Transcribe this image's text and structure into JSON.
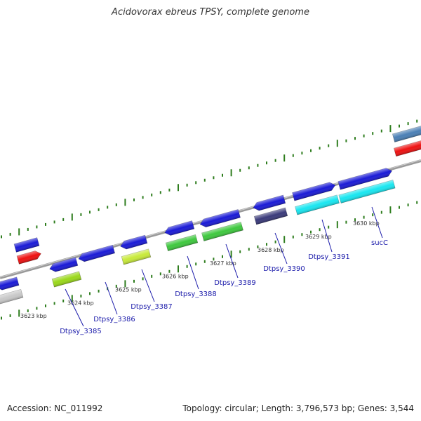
{
  "title": "Acidovorax ebreus TPSY, complete genome",
  "footer": {
    "accession": "Accession: NC_011992",
    "summary": "Topology: circular; Length: 3,796,573 bp; Genes: 3,544"
  },
  "colors": {
    "forward_gene": "#1a1ad6",
    "backbone": "#8a8a8a",
    "tick": "#2e7d1e",
    "gene_label": "#1a1aaa",
    "red": "#ee1111",
    "grey": "#c8c8c8",
    "steel": "#4a7fb5",
    "lime": "#9ad81a",
    "green": "#3ec83e",
    "purple": "#3a3a7a",
    "cyan": "#18e6f0"
  },
  "kbp_ticks": [
    "3623 kbp",
    "3624 kbp",
    "3625 kbp",
    "3626 kbp",
    "3627 kbp",
    "3628 kbp",
    "3629 kbp",
    "3630 kbp"
  ],
  "genes": [
    {
      "name": "Dtpsy_3385",
      "id": "gene-dtpsy-3385",
      "strand": "-",
      "color_top": "#1a1ad6",
      "color_bottom": "#9ad81a"
    },
    {
      "name": "Dtpsy_3386",
      "id": "gene-dtpsy-3386",
      "strand": "-",
      "color_top": "#1a1ad6",
      "color_bottom": null
    },
    {
      "name": "Dtpsy_3387",
      "id": "gene-dtpsy-3387",
      "strand": "-",
      "color_top": "#1a1ad6",
      "color_bottom": "#c8ea3a"
    },
    {
      "name": "Dtpsy_3388",
      "id": "gene-dtpsy-3388",
      "strand": "-",
      "color_top": "#1a1ad6",
      "color_bottom": "#3ec83e"
    },
    {
      "name": "Dtpsy_3389",
      "id": "gene-dtpsy-3389",
      "strand": "-",
      "color_top": "#1a1ad6",
      "color_bottom": "#3ec83e"
    },
    {
      "name": "Dtpsy_3390",
      "id": "gene-dtpsy-3390",
      "strand": "-",
      "color_top": "#1a1ad6",
      "color_bottom": "#3a3a7a"
    },
    {
      "name": "Dtpsy_3391",
      "id": "gene-dtpsy-3391",
      "strand": "+",
      "color_top": "#1a1ad6",
      "color_bottom": "#18e6f0"
    },
    {
      "name": "sucC",
      "id": "gene-succ",
      "strand": "+",
      "color_top": "#1a1ad6",
      "color_bottom": "#18e6f0"
    }
  ],
  "unlabeled_features": [
    {
      "name": "upstream-feature-blue",
      "color": "#1a1ad6"
    },
    {
      "name": "upstream-feature-grey",
      "color": "#c8c8c8"
    },
    {
      "name": "upstream-feature-red",
      "color": "#ee1111"
    },
    {
      "name": "upstream-feature-blue-2",
      "color": "#1a1ad6"
    },
    {
      "name": "downstream-feature-steel",
      "color": "#4a7fb5"
    },
    {
      "name": "downstream-feature-red",
      "color": "#ee1111"
    }
  ]
}
